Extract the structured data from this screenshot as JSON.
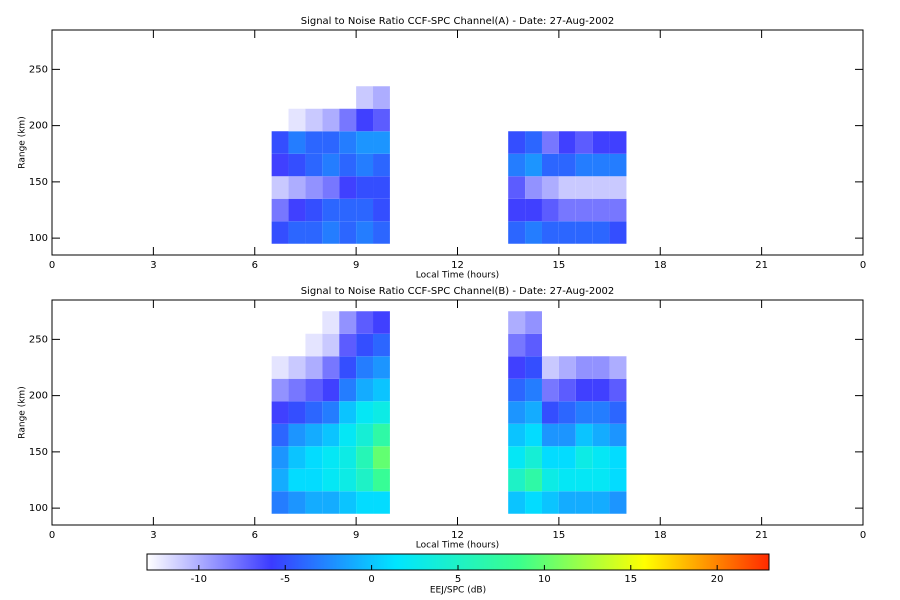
{
  "chart_data": [
    {
      "type": "heatmap",
      "title": "Signal to Noise Ratio CCF-SPC Channel(A) - Date: 27-Aug-2002",
      "xlabel": "Local Time (hours)",
      "ylabel": "Range (km)",
      "xlim": [
        0,
        24
      ],
      "xticks": [
        0,
        3,
        6,
        9,
        12,
        15,
        18,
        21,
        {
          "value": 24,
          "label": "0"
        }
      ],
      "ylim": [
        85,
        285
      ],
      "yticks": [
        100,
        150,
        200,
        250
      ],
      "xbins": [
        6.5,
        7,
        7.5,
        8,
        8.5,
        9,
        9.5,
        10,
        10.5,
        11,
        11.5,
        12,
        12.5,
        13,
        13.5,
        14,
        14.5,
        15,
        15.5,
        16,
        16.5,
        17
      ],
      "ybins": [
        95,
        115,
        135,
        155,
        175,
        195,
        215,
        235,
        255,
        275
      ],
      "z": [
        [
          -5,
          -4,
          -4,
          -3,
          -4,
          -3,
          -4,
          null,
          null,
          null,
          null,
          null,
          null,
          null,
          -4,
          -3,
          -4,
          -4,
          -4,
          -4,
          -5
        ],
        [
          -8,
          -6,
          -5,
          -4,
          -4,
          -4,
          -5,
          null,
          null,
          null,
          null,
          null,
          null,
          null,
          -6,
          -6,
          -7,
          -8,
          -8,
          -8,
          -8
        ],
        [
          -11,
          -10,
          -9,
          -8,
          -6,
          -5,
          -5,
          null,
          null,
          null,
          null,
          null,
          null,
          null,
          -7,
          -9,
          -10,
          -11,
          -11,
          -11,
          -11
        ],
        [
          -6,
          -5,
          -4,
          -3,
          -4,
          -3,
          -4,
          null,
          null,
          null,
          null,
          null,
          null,
          null,
          -3,
          -2,
          -4,
          -4,
          -3,
          -3,
          -3
        ],
        [
          -5,
          -3,
          -4,
          -4,
          -3,
          -2,
          -2,
          null,
          null,
          null,
          null,
          null,
          null,
          null,
          -5,
          -4,
          -8,
          -6,
          -7,
          -6,
          -6
        ],
        [
          null,
          -12,
          -11,
          -10,
          -8,
          -6,
          -7,
          null,
          null,
          null,
          null,
          null,
          null,
          null,
          null,
          null,
          null,
          null,
          null,
          null,
          null
        ],
        [
          null,
          null,
          null,
          null,
          null,
          -11,
          -10,
          null,
          null,
          null,
          null,
          null,
          null,
          null,
          null,
          null,
          null,
          null,
          null,
          null,
          null
        ],
        [
          null,
          null,
          null,
          null,
          null,
          null,
          null,
          null,
          null,
          null,
          null,
          null,
          null,
          null,
          null,
          null,
          null,
          null,
          null,
          null,
          null
        ],
        [
          null,
          null,
          null,
          null,
          null,
          null,
          null,
          null,
          null,
          null,
          null,
          null,
          null,
          null,
          null,
          null,
          null,
          null,
          null,
          null,
          null
        ]
      ]
    },
    {
      "type": "heatmap",
      "title": "Signal to Noise Ratio CCF-SPC Channel(B) - Date: 27-Aug-2002",
      "xlabel": "Local Time (hours)",
      "ylabel": "Range (km)",
      "xlim": [
        0,
        24
      ],
      "xticks": [
        0,
        3,
        6,
        9,
        12,
        15,
        18,
        21,
        {
          "value": 24,
          "label": "0"
        }
      ],
      "ylim": [
        85,
        285
      ],
      "yticks": [
        100,
        150,
        200,
        250
      ],
      "xbins": [
        6.5,
        7,
        7.5,
        8,
        8.5,
        9,
        9.5,
        10,
        10.5,
        11,
        11.5,
        12,
        12.5,
        13,
        13.5,
        14,
        14.5,
        15,
        15.5,
        16,
        16.5,
        17
      ],
      "ybins": [
        95,
        115,
        135,
        155,
        175,
        195,
        215,
        235,
        255,
        275
      ],
      "z": [
        [
          -3,
          -2,
          -1,
          -1,
          0,
          1,
          1,
          null,
          null,
          null,
          null,
          null,
          null,
          null,
          0,
          1,
          0,
          -1,
          -1,
          -1,
          -2
        ],
        [
          -1,
          1,
          1,
          2,
          3,
          5,
          8,
          null,
          null,
          null,
          null,
          null,
          null,
          null,
          5,
          7,
          3,
          2,
          2,
          2,
          1
        ],
        [
          -2,
          0,
          1,
          2,
          3,
          6,
          10,
          null,
          null,
          null,
          null,
          null,
          null,
          null,
          2,
          4,
          1,
          1,
          3,
          2,
          1
        ],
        [
          -4,
          -2,
          -1,
          0,
          2,
          4,
          7,
          null,
          null,
          null,
          null,
          null,
          null,
          null,
          0,
          1,
          -2,
          -2,
          0,
          -1,
          -2
        ],
        [
          -6,
          -5,
          -4,
          -3,
          0,
          2,
          3,
          null,
          null,
          null,
          null,
          null,
          null,
          null,
          -2,
          -1,
          -5,
          -4,
          -3,
          -3,
          -4
        ],
        [
          -9,
          -8,
          -7,
          -6,
          -3,
          -1,
          0,
          null,
          null,
          null,
          null,
          null,
          null,
          null,
          -4,
          -3,
          -8,
          -7,
          -6,
          -6,
          -7
        ],
        [
          -12,
          -11,
          -10,
          -8,
          -5,
          -3,
          -2,
          null,
          null,
          null,
          null,
          null,
          null,
          null,
          -6,
          -5,
          -11,
          -10,
          -9,
          -9,
          -10
        ],
        [
          null,
          null,
          -12,
          -11,
          -7,
          -5,
          -4,
          null,
          null,
          null,
          null,
          null,
          null,
          null,
          -8,
          -7,
          null,
          null,
          null,
          null,
          null
        ],
        [
          null,
          null,
          null,
          -12,
          -9,
          -7,
          -6,
          null,
          null,
          null,
          null,
          null,
          null,
          null,
          -10,
          -9,
          null,
          null,
          null,
          null,
          null
        ]
      ]
    }
  ],
  "colorbar": {
    "label": "EEJ/SPC (dB)",
    "lim": [
      -13,
      23
    ],
    "ticks": [
      -10,
      -5,
      0,
      5,
      10,
      15,
      20
    ],
    "colormap": [
      "#ffffff",
      "#3b3bff",
      "#00e5ff",
      "#3cff8c",
      "#ffff00",
      "#ff2a00"
    ]
  }
}
